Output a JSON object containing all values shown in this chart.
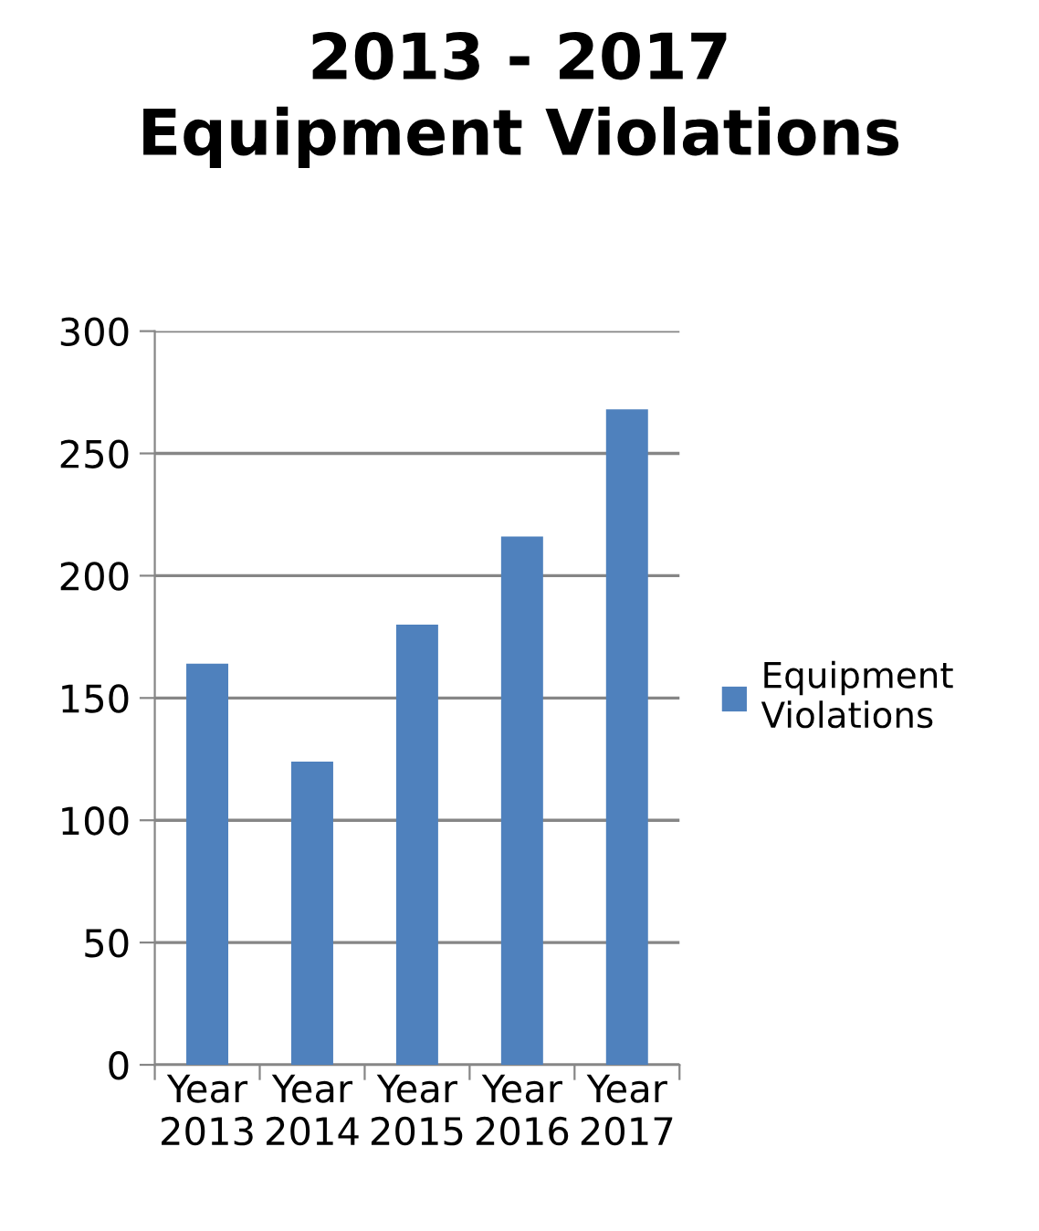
{
  "chart_data": {
    "type": "bar",
    "title": "2013 - 2017\nEquipment Violations",
    "categories": [
      "Year 2013",
      "Year 2014",
      "Year 2015",
      "Year 2016",
      "Year 2017"
    ],
    "series": [
      {
        "name": "Equipment Violations",
        "color": "#4f81bd",
        "values": [
          164,
          124,
          180,
          216,
          268
        ]
      }
    ],
    "ylim": [
      0,
      300
    ],
    "yticks": [
      0,
      50,
      100,
      150,
      200,
      250,
      300
    ],
    "grid": "y",
    "legend": "right"
  }
}
